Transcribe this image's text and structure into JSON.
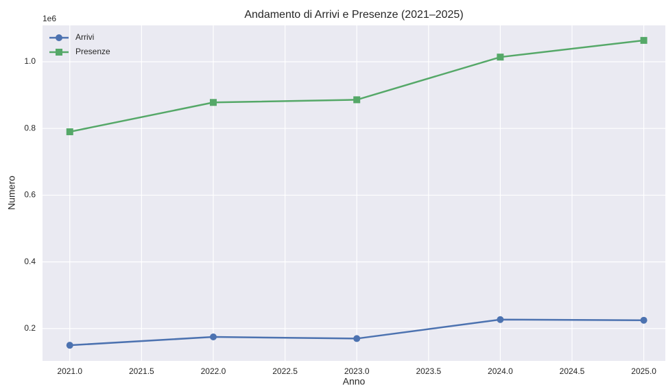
{
  "chart_data": {
    "type": "line",
    "title": "Andamento di Arrivi e Presenze (2021–2025)",
    "xlabel": "Anno",
    "ylabel": "Numero",
    "y_offset_label": "1e6",
    "x": [
      2021,
      2022,
      2023,
      2024,
      2025
    ],
    "series": [
      {
        "name": "Arrivi",
        "color": "#4c72b0",
        "marker": "circle",
        "values": [
          150000,
          175000,
          170000,
          227000,
          225000
        ]
      },
      {
        "name": "Presenze",
        "color": "#55a868",
        "marker": "square",
        "values": [
          790000,
          878000,
          886000,
          1014000,
          1064000
        ]
      }
    ],
    "xlim": [
      2020.81,
      2025.15
    ],
    "xticks": [
      {
        "value": 2021,
        "label": "2021.0"
      },
      {
        "value": 2021.5,
        "label": "2021.5"
      },
      {
        "value": 2022,
        "label": "2022.0"
      },
      {
        "value": 2022.5,
        "label": "2022.5"
      },
      {
        "value": 2023,
        "label": "2023.0"
      },
      {
        "value": 2023.5,
        "label": "2023.5"
      },
      {
        "value": 2024,
        "label": "2024.0"
      },
      {
        "value": 2024.5,
        "label": "2024.5"
      },
      {
        "value": 2025,
        "label": "2025.0"
      }
    ],
    "ylim": [
      103000,
      1109000
    ],
    "yticks": [
      {
        "value": 200000,
        "label": "0.2"
      },
      {
        "value": 400000,
        "label": "0.4"
      },
      {
        "value": 600000,
        "label": "0.6"
      },
      {
        "value": 800000,
        "label": "0.8"
      },
      {
        "value": 1000000,
        "label": "1.0"
      }
    ],
    "grid": true,
    "legend": "upper left"
  }
}
